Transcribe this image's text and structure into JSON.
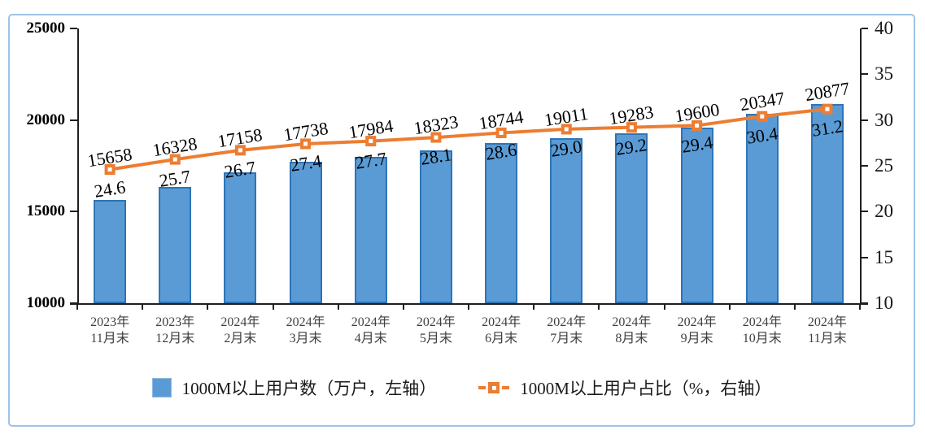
{
  "chart_data": {
    "type": "bar+line",
    "categories": [
      [
        "2023年",
        "11月末"
      ],
      [
        "2023年",
        "12月末"
      ],
      [
        "2024年",
        "2月末"
      ],
      [
        "2024年",
        "3月末"
      ],
      [
        "2024年",
        "4月末"
      ],
      [
        "2024年",
        "5月末"
      ],
      [
        "2024年",
        "6月末"
      ],
      [
        "2024年",
        "7月末"
      ],
      [
        "2024年",
        "8月末"
      ],
      [
        "2024年",
        "9月末"
      ],
      [
        "2024年",
        "10月末"
      ],
      [
        "2024年",
        "11月末"
      ]
    ],
    "series": [
      {
        "name": "1000M以上用户数（万户，左轴）",
        "type": "bar",
        "axis": "left",
        "values": [
          15658,
          16328,
          17158,
          17738,
          17984,
          18323,
          18744,
          19011,
          19283,
          19600,
          20347,
          20877
        ]
      },
      {
        "name": "1000M以上用户占比（%，右轴）",
        "type": "line",
        "axis": "right",
        "values": [
          24.6,
          25.7,
          26.7,
          27.4,
          27.7,
          28.1,
          28.6,
          29.0,
          29.2,
          29.4,
          30.4,
          31.2
        ]
      }
    ],
    "left_axis": {
      "min": 10000,
      "max": 25000,
      "step": 5000,
      "ticks": [
        "10000",
        "15000",
        "20000",
        "25000"
      ]
    },
    "right_axis": {
      "min": 10,
      "max": 40,
      "step": 5,
      "ticks": [
        "10",
        "15",
        "20",
        "25",
        "30",
        "35",
        "40"
      ]
    },
    "grid": false,
    "legend_position": "bottom",
    "colors": {
      "bar_fill": "#5B9BD5",
      "bar_border": "#2E75B6",
      "line": "#ED7D31",
      "frame_border": "#9DC3E6",
      "axis": "#1f1f1f",
      "xtick_label": "#3f3f3f"
    }
  },
  "legend": {
    "items": [
      {
        "label": "1000M以上用户数（万户，左轴）",
        "swatch": "bar"
      },
      {
        "label": "1000M以上用户占比（%，右轴）",
        "swatch": "line-marker"
      }
    ]
  }
}
